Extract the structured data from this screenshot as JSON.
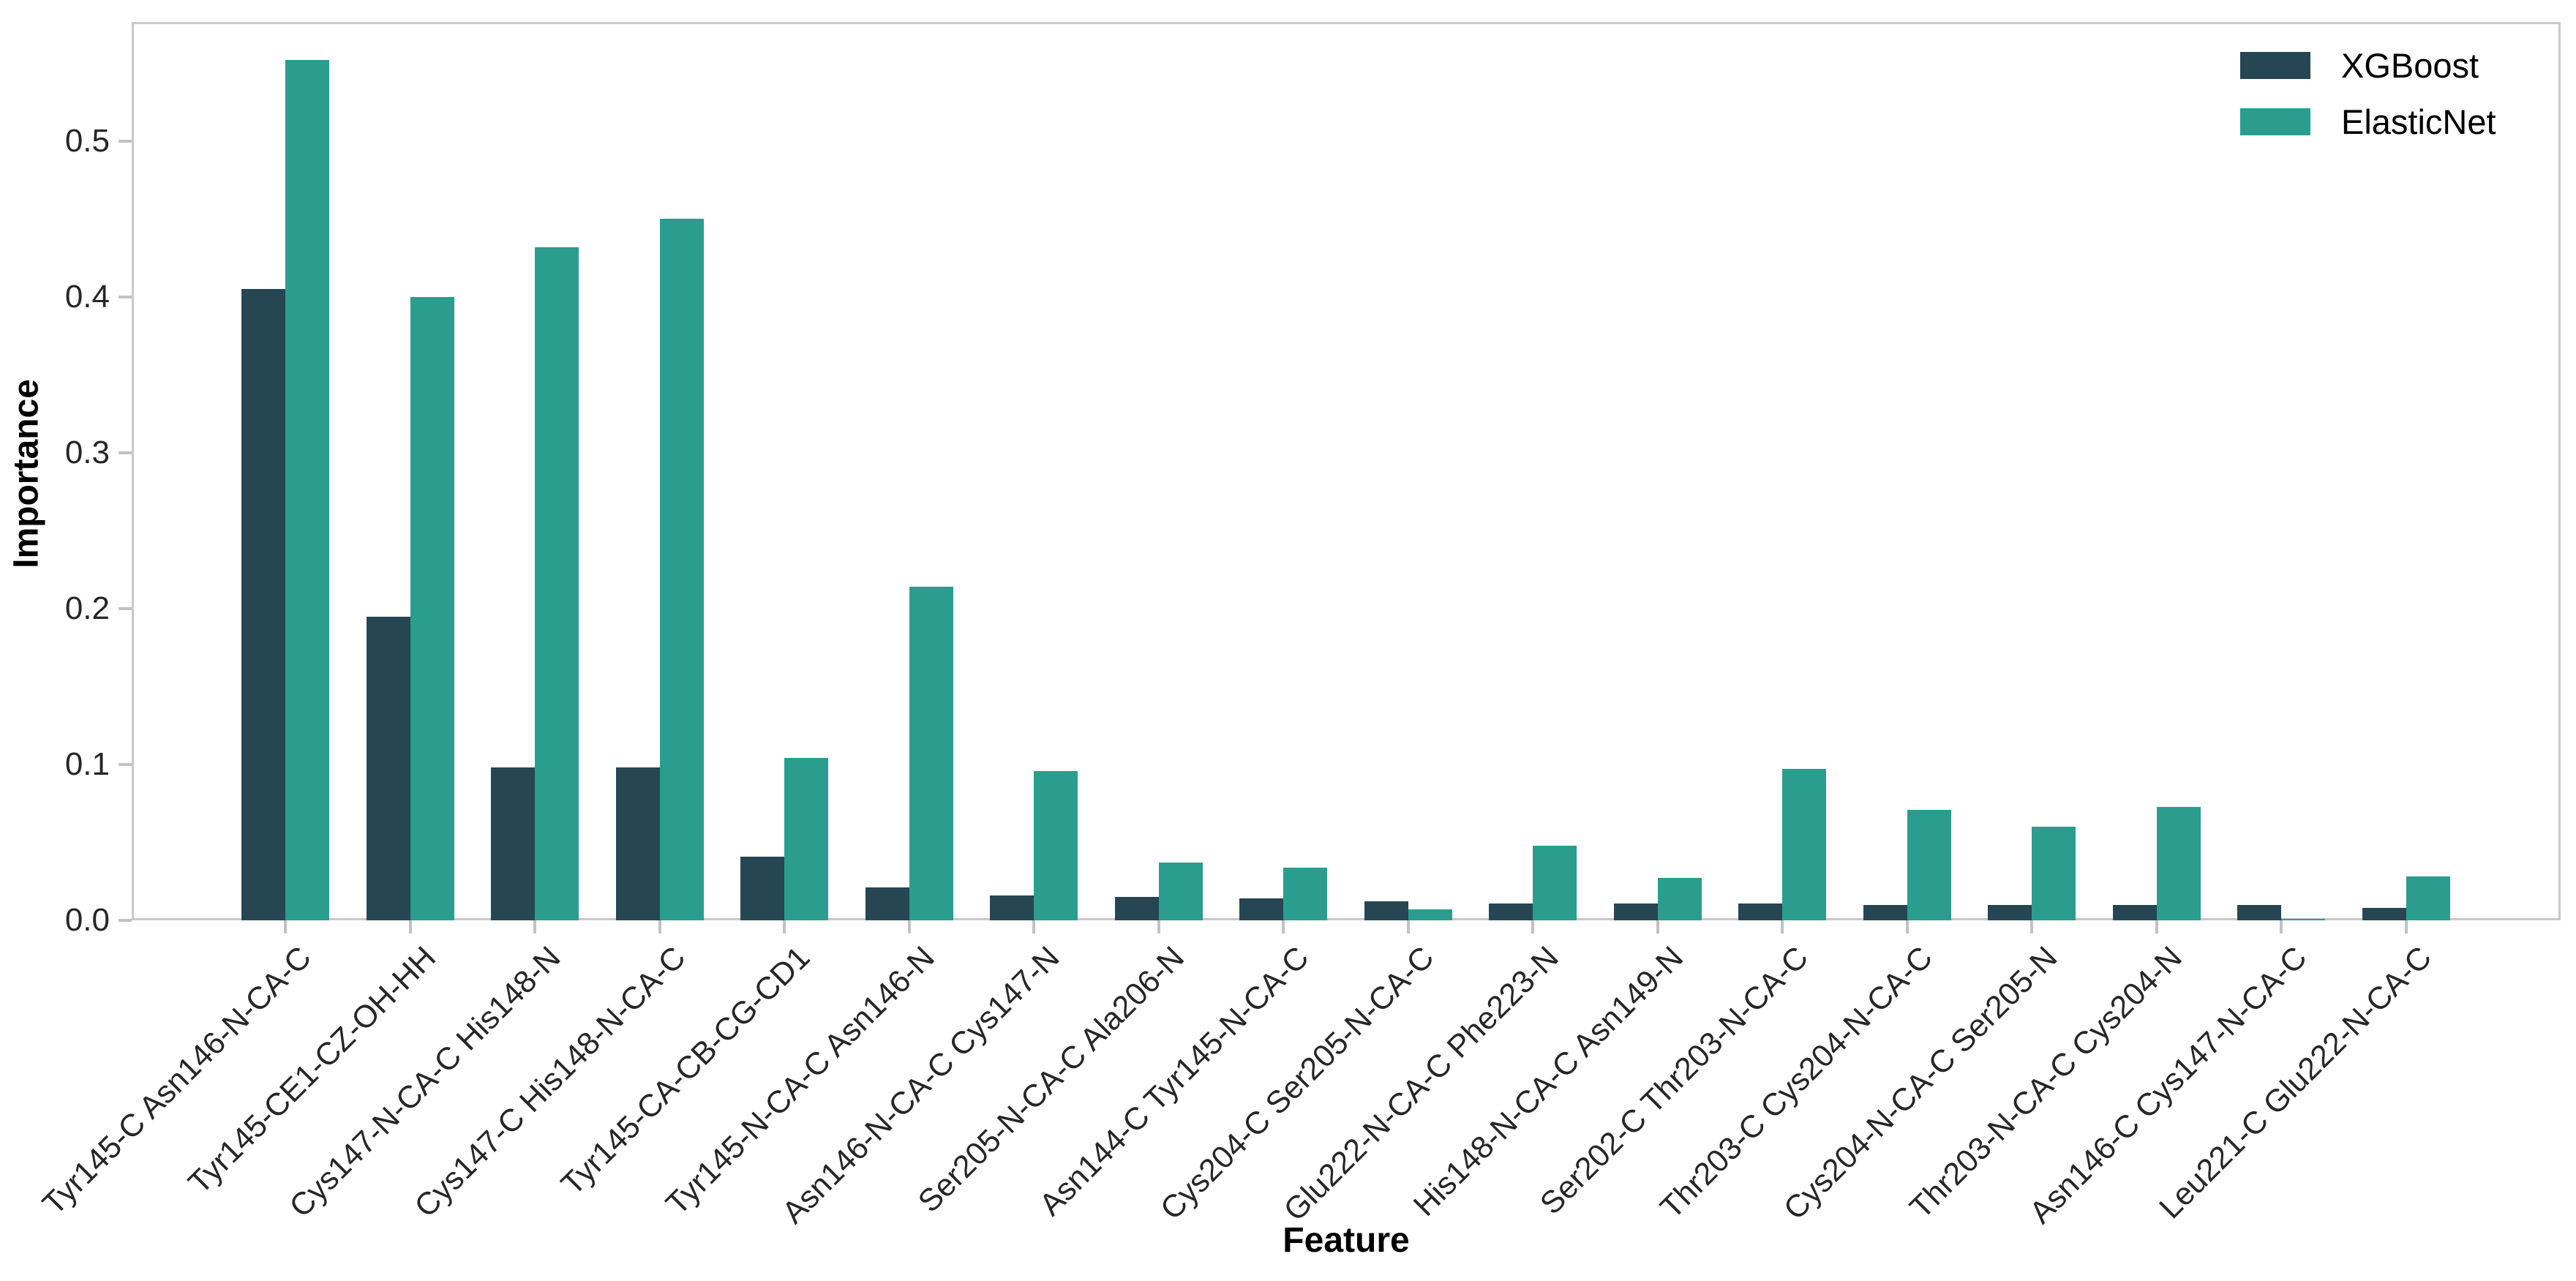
{
  "chart_data": {
    "type": "bar",
    "title": "",
    "xlabel": "Feature",
    "ylabel": "Importance",
    "ylim": [
      0,
      0.585
    ],
    "y_ticks": [
      0.0,
      0.1,
      0.2,
      0.3,
      0.4,
      0.5
    ],
    "grid": false,
    "legend_position": "upper right",
    "background": "#ffffff",
    "spine_color": "#c9c9c9",
    "tick_color": "#c2c2c2",
    "text_color": "#262626",
    "categories": [
      "Tyr145-C Asn146-N-CA-C",
      "Tyr145-CE1-CZ-OH-HH",
      "Cys147-N-CA-C His148-N",
      "Cys147-C His148-N-CA-C",
      "Tyr145-CA-CB-CG-CD1",
      "Tyr145-N-CA-C Asn146-N",
      "Asn146-N-CA-C Cys147-N",
      "Ser205-N-CA-C Ala206-N",
      "Asn144-C Tyr145-N-CA-C",
      "Cys204-C Ser205-N-CA-C",
      "Glu222-N-CA-C Phe223-N",
      "His148-N-CA-C Asn149-N",
      "Ser202-C Thr203-N-CA-C",
      "Thr203-C Cys204-N-CA-C",
      "Cys204-N-CA-C Ser205-N",
      "Thr203-N-CA-C Cys204-N",
      "Asn146-C Cys147-N-CA-C",
      "Leu221-C Glu222-N-CA-C"
    ],
    "series": [
      {
        "name": "XGBoost",
        "color": "#264653",
        "values": [
          0.405,
          0.195,
          0.098,
          0.098,
          0.041,
          0.021,
          0.016,
          0.015,
          0.014,
          0.012,
          0.011,
          0.011,
          0.011,
          0.01,
          0.01,
          0.01,
          0.01,
          0.008
        ]
      },
      {
        "name": "ElasticNet",
        "color": "#2a9d8f",
        "values": [
          0.552,
          0.4,
          0.432,
          0.45,
          0.104,
          0.214,
          0.096,
          0.037,
          0.034,
          0.007,
          0.048,
          0.027,
          0.097,
          0.071,
          0.06,
          0.073,
          0.001,
          0.028
        ]
      }
    ]
  }
}
